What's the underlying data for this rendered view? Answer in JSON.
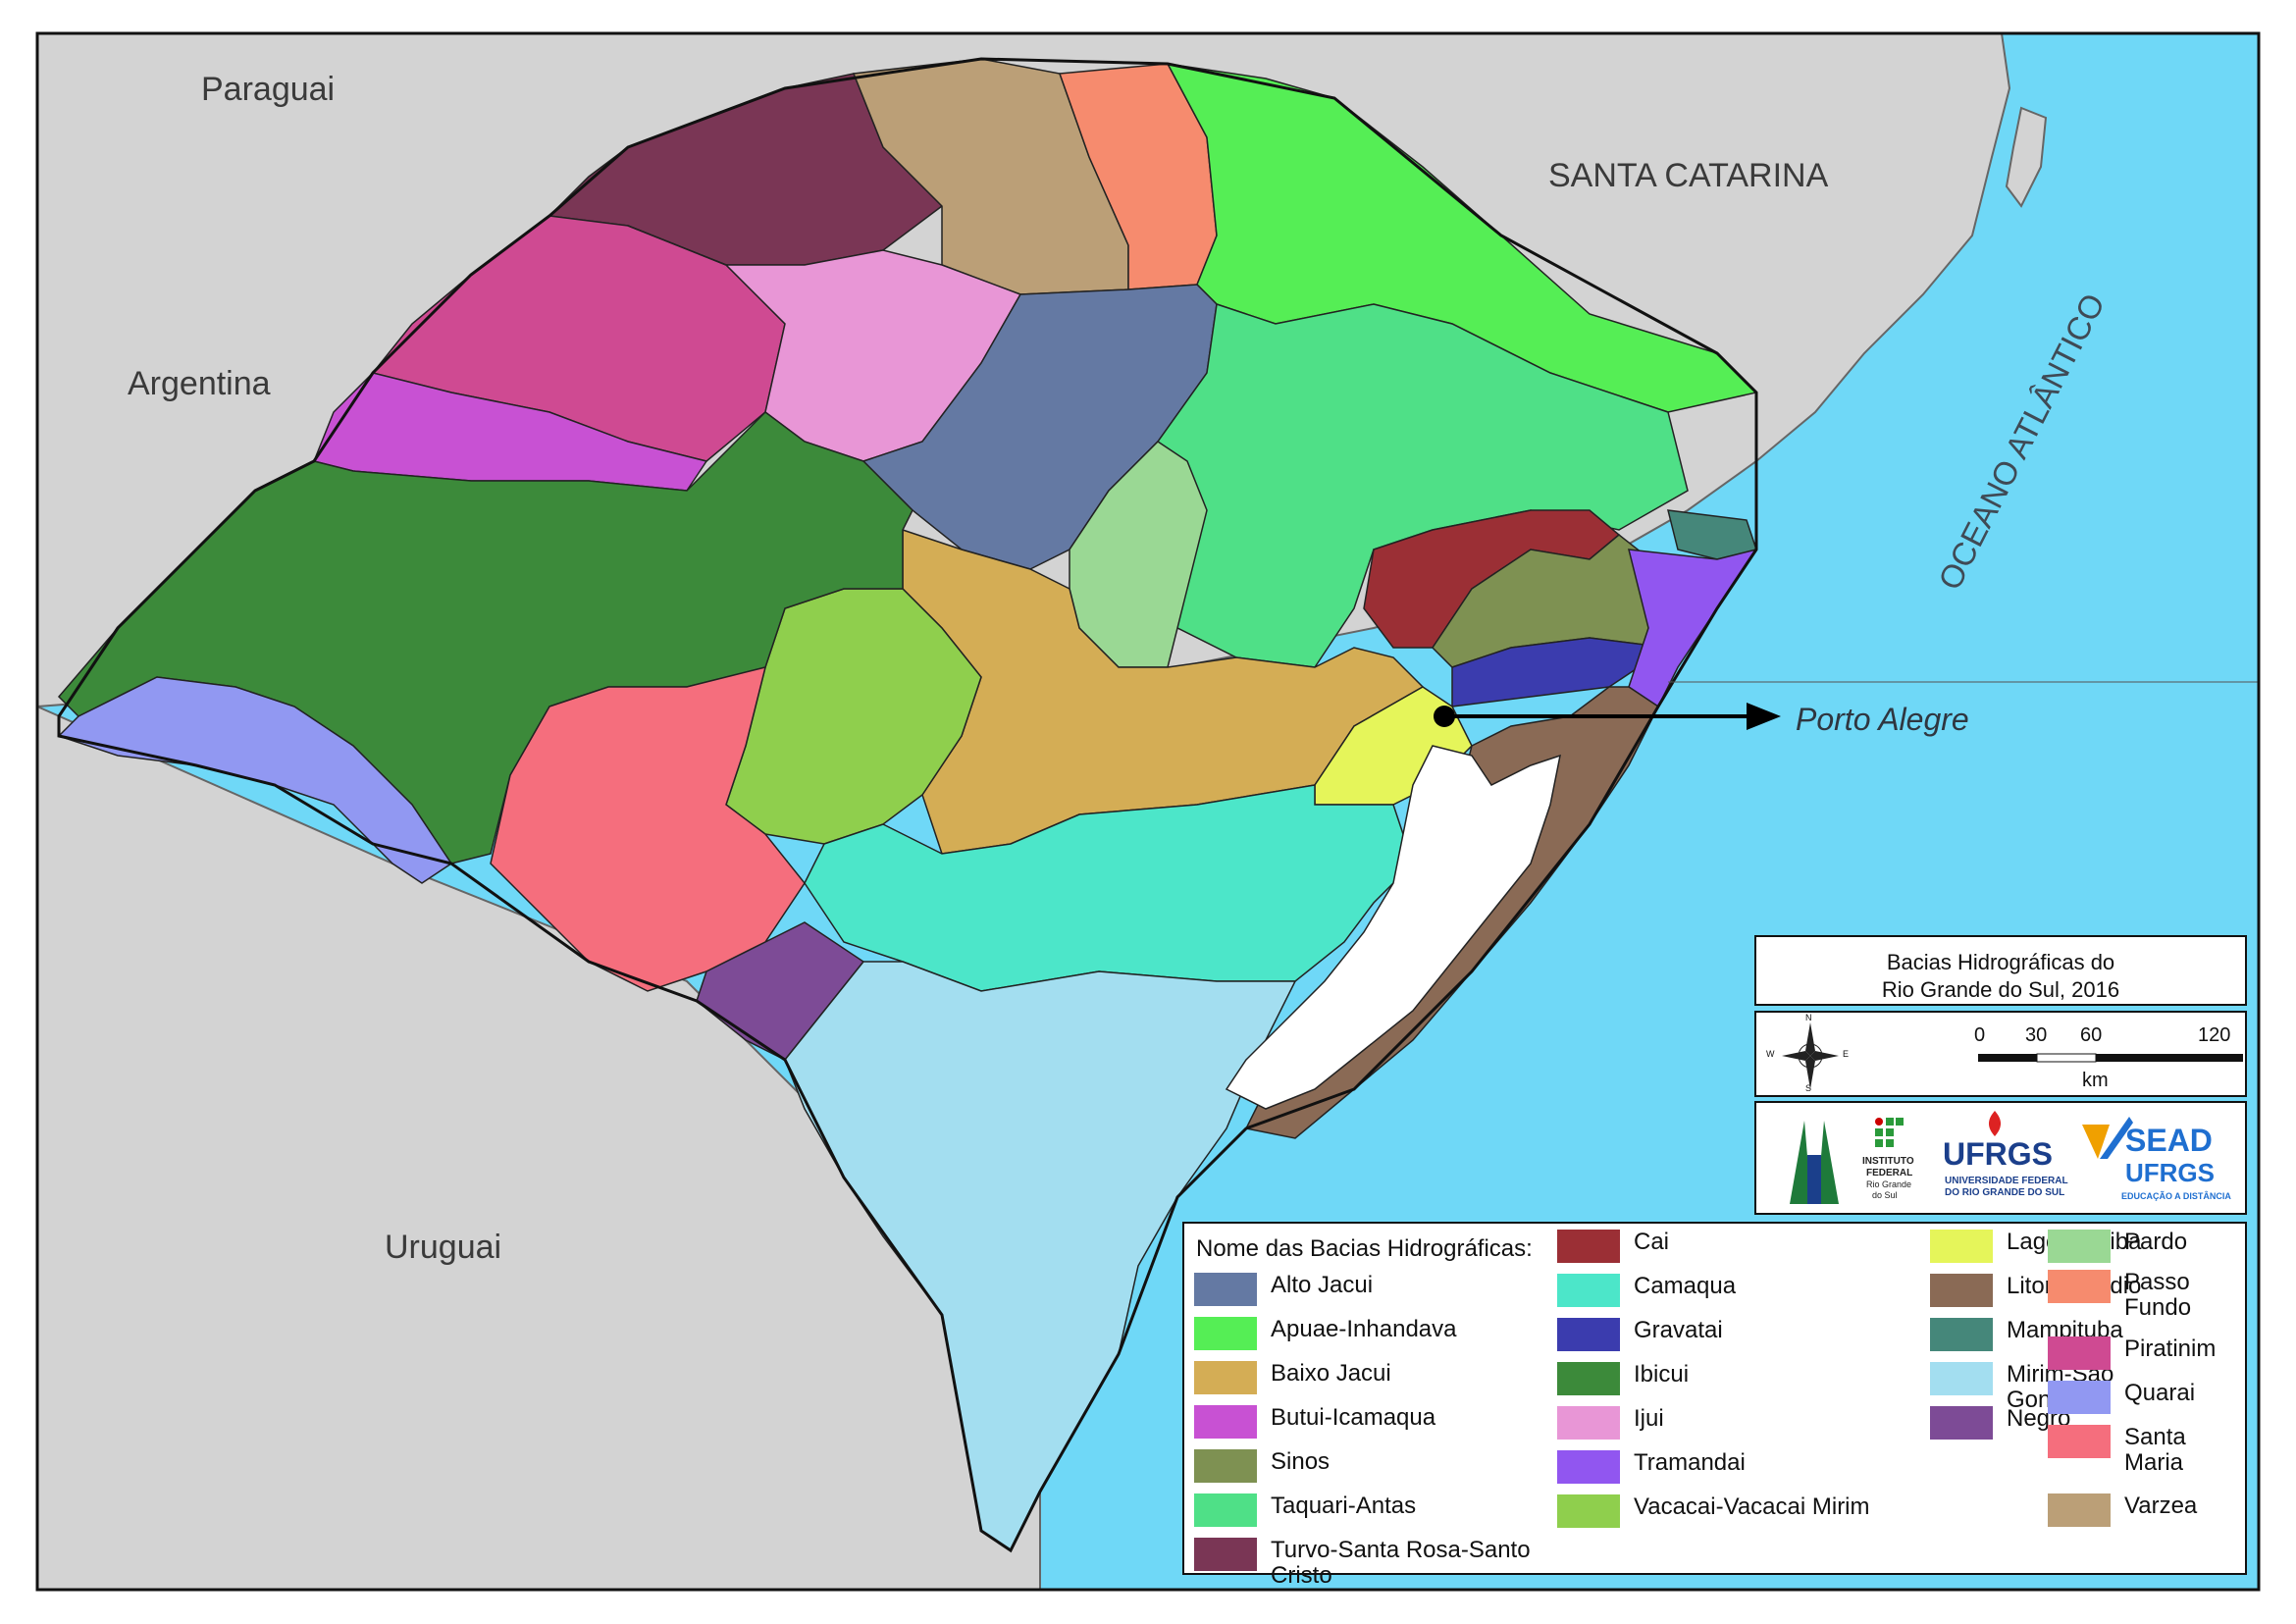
{
  "map": {
    "labels": {
      "paraguai": "Paraguai",
      "argentina": "Argentina",
      "uruguai": "Uruguai",
      "santa_catarina": "SANTA CATARINA",
      "oceano": "OCEANO ATLÂNTICO",
      "porto_alegre": "Porto Alegre"
    },
    "colors": {
      "ocean": "#6fd8f7",
      "land": "#d3d3d3",
      "lake": "#ffffff"
    }
  },
  "title_box": {
    "line1": "Bacias Hidrográficas do",
    "line2": "Rio Grande do Sul, 2016"
  },
  "scale": {
    "ticks": [
      "0",
      "30",
      "60",
      "120"
    ],
    "unit": "km",
    "compass": [
      "N",
      "S",
      "E",
      "W"
    ]
  },
  "logos": {
    "if_line1": "INSTITUTO",
    "if_line2": "FEDERAL",
    "if_line3": "Rio Grande",
    "if_line4": "do Sul",
    "ufrgs": "UFRGS",
    "ufrgs_sub1": "UNIVERSIDADE FEDERAL",
    "ufrgs_sub2": "DO RIO GRANDE DO SUL",
    "sead1": "SEAD",
    "sead2": "UFRGS",
    "sead_sub": "EDUCAÇÃO A DISTÂNCIA"
  },
  "legend": {
    "title": "Nome das Bacias Hidrográficas:",
    "items": [
      {
        "label": "Alto Jacui",
        "color": "#6479a3"
      },
      {
        "label": "Apuae-Inhandava",
        "color": "#55ee55"
      },
      {
        "label": "Baixo Jacui",
        "color": "#d4ad55"
      },
      {
        "label": "Butui-Icamaqua",
        "color": "#c851d3"
      },
      {
        "label": "Sinos",
        "color": "#7e9152"
      },
      {
        "label": "Taquari-Antas",
        "color": "#4fe087"
      },
      {
        "label": "Turvo-Santa Rosa-Santo Cristo",
        "color": "#7a3655"
      },
      {
        "label": "Cai",
        "color": "#9b2f35"
      },
      {
        "label": "Camaqua",
        "color": "#4ce6c9"
      },
      {
        "label": "Gravatai",
        "color": "#3b3cae"
      },
      {
        "label": "Ibicui",
        "color": "#3c8a3a"
      },
      {
        "label": "Ijui",
        "color": "#e896d6"
      },
      {
        "label": "Tramandai",
        "color": "#9156f0"
      },
      {
        "label": "Vacacai-Vacacai Mirim",
        "color": "#8fcf4d"
      },
      {
        "label": "Lago Guaiba",
        "color": "#e5f55a"
      },
      {
        "label": "Litoral Medio",
        "color": "#8a6a55"
      },
      {
        "label": "Mampituba",
        "color": "#45877a"
      },
      {
        "label": "Mirim-Sao Goncalo",
        "color": "#a3def0"
      },
      {
        "label": "Negro",
        "color": "#7d4b96"
      },
      {
        "label": "Pardo",
        "color": "#9ad894"
      },
      {
        "label": "Passo Fundo",
        "color": "#f68b6e"
      },
      {
        "label": "Piratinim",
        "color": "#cf4a92"
      },
      {
        "label": "Quarai",
        "color": "#9198f2"
      },
      {
        "label": "Santa Maria",
        "color": "#f56e7d"
      },
      {
        "label": "Varzea",
        "color": "#bb9f77"
      }
    ]
  }
}
